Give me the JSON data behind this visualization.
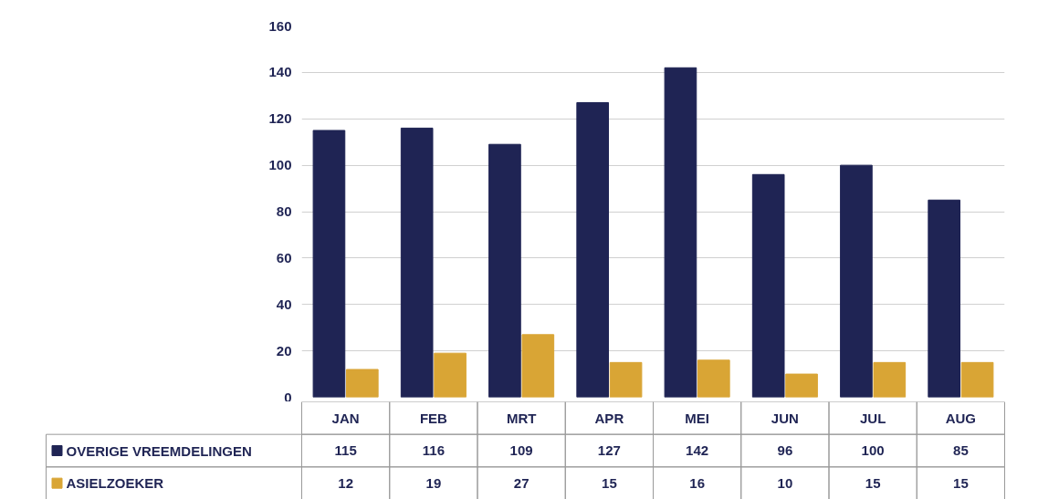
{
  "chart_data": {
    "type": "bar",
    "categories": [
      "JAN",
      "FEB",
      "MRT",
      "APR",
      "MEI",
      "JUN",
      "JUL",
      "AUG"
    ],
    "series": [
      {
        "name": "OVERIGE VREEMDELINGEN",
        "color": "#1f2454",
        "values": [
          115,
          116,
          109,
          127,
          142,
          96,
          100,
          85
        ]
      },
      {
        "name": "ASIELZOEKER",
        "color": "#d9a535",
        "values": [
          12,
          19,
          27,
          15,
          16,
          10,
          15,
          15
        ]
      }
    ],
    "ylim": [
      0,
      160
    ],
    "yticks": [
      0,
      20,
      40,
      60,
      80,
      100,
      120,
      140,
      160
    ],
    "grid": "y",
    "data_labels": true,
    "legend": "bottom"
  }
}
